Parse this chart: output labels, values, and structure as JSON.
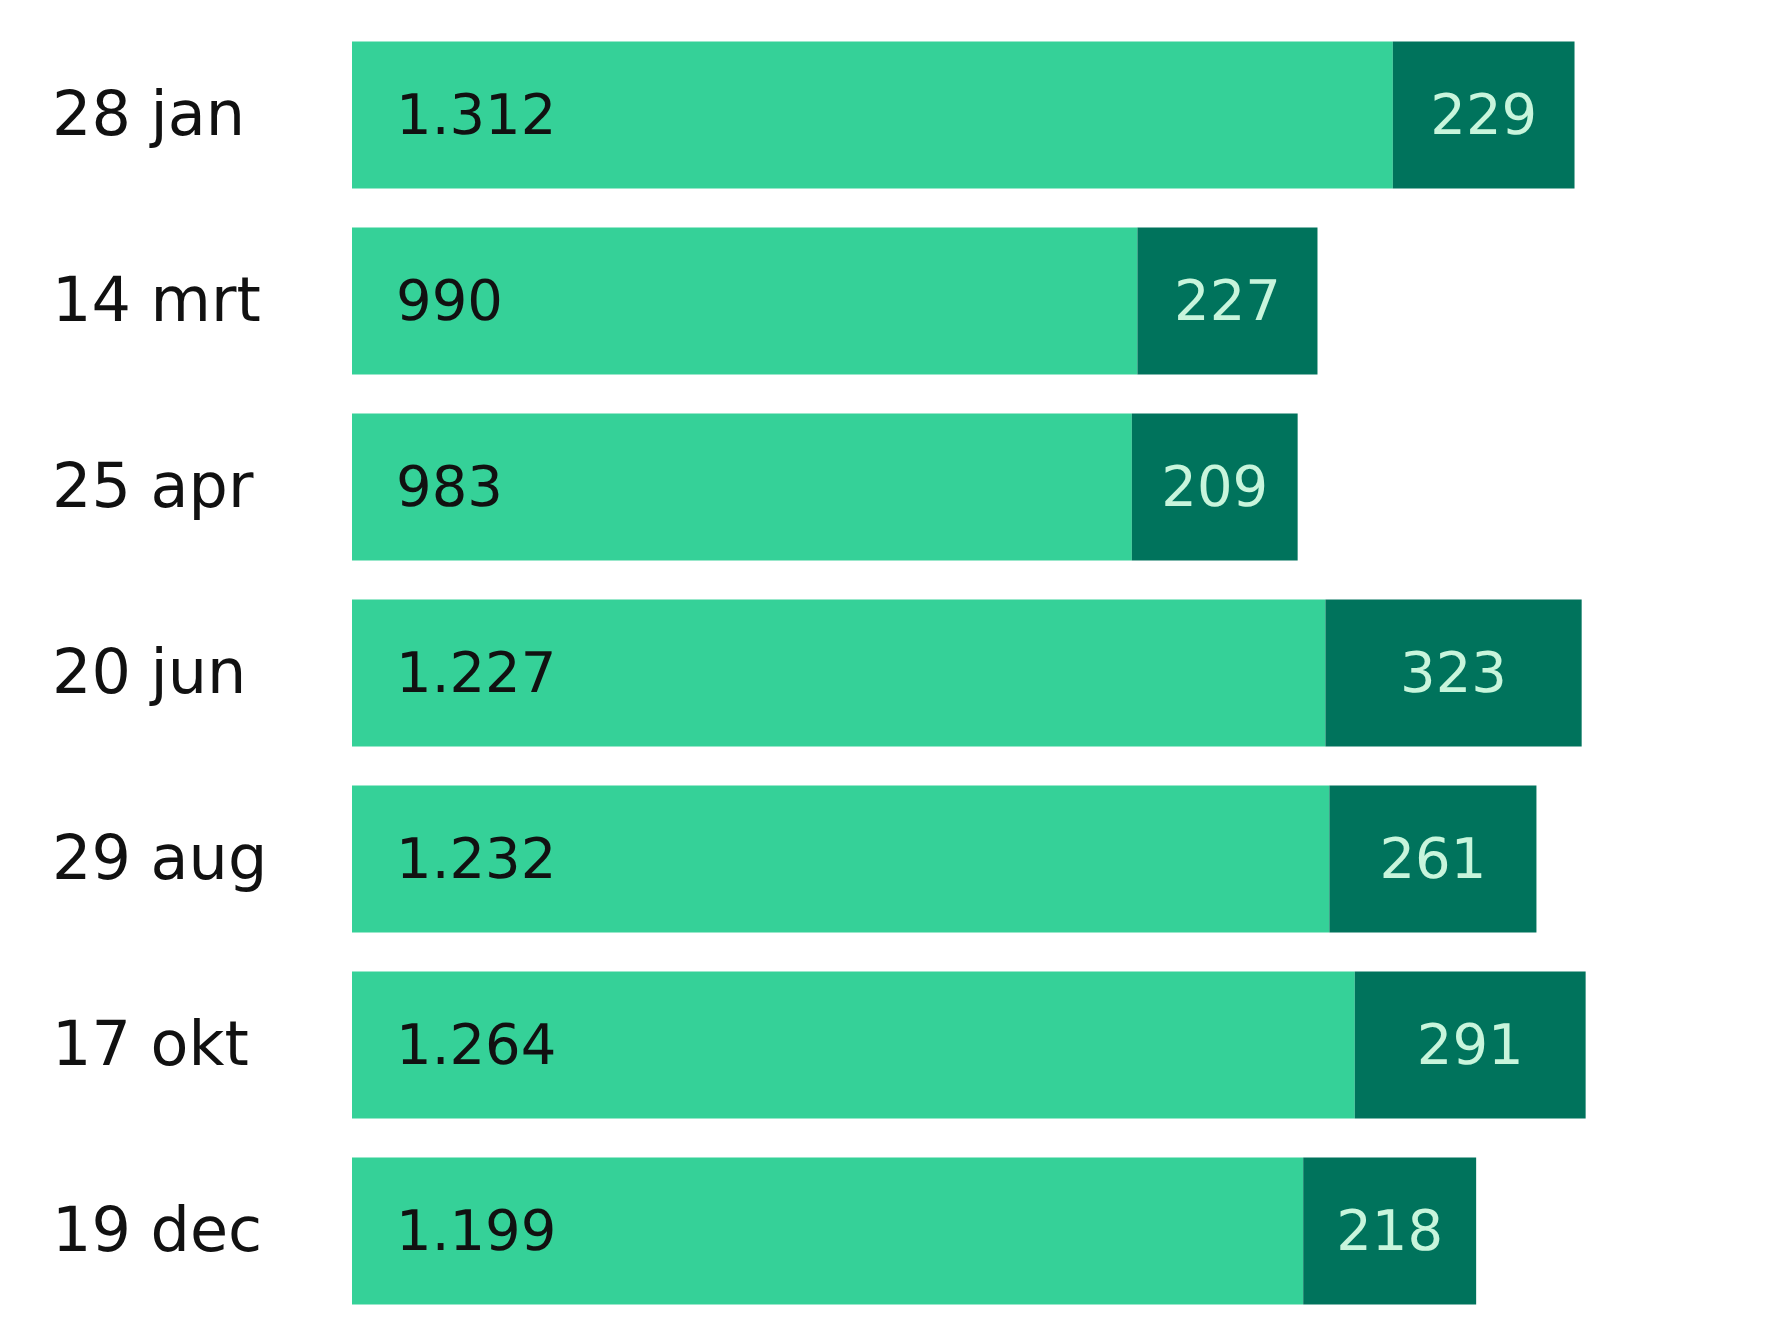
{
  "chart_data": {
    "type": "bar",
    "orientation": "horizontal",
    "stacked": true,
    "categories": [
      "28 jan",
      "14 mrt",
      "25 apr",
      "20 jun",
      "29 aug",
      "17 okt",
      "19 dec"
    ],
    "series": [
      {
        "color": "#35d198",
        "values": [
          1312,
          990,
          983,
          1227,
          1232,
          1264,
          1199
        ],
        "value_labels": [
          "1.312",
          "990",
          "983",
          "1.227",
          "1.232",
          "1.264",
          "1.199"
        ]
      },
      {
        "color": "#00735c",
        "values": [
          229,
          227,
          209,
          323,
          261,
          291,
          218
        ],
        "value_labels": [
          "229",
          "227",
          "209",
          "323",
          "261",
          "291",
          "218"
        ]
      }
    ],
    "tick_labels": "y"
  }
}
